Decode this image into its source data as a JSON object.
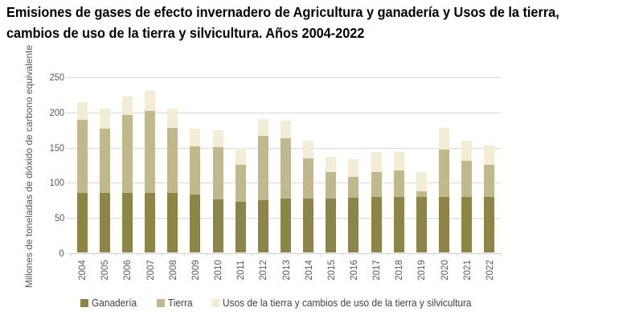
{
  "title": {
    "line1": "Emisiones de gases de efecto invernadero de Agricultura y ganadería y Usos de la tierra,",
    "line2": "cambios de uso de la tierra y silvicultura. Años 2004-2022"
  },
  "colors": {
    "ganaderia": "#8d8546",
    "tierra": "#c1b98b",
    "usos": "#f2edd5",
    "grid": "#d9d9d9",
    "axis_text": "#595959",
    "legend_text": "#3f3f3f",
    "title_text": "#000000"
  },
  "chart_data": {
    "type": "bar",
    "stacked": true,
    "title": "Emisiones de gases de efecto invernadero de Agricultura y ganadería y Usos de la tierra, cambios de uso de la tierra y silvicultura. Años 2004-2022",
    "xlabel": "",
    "ylabel": "Millones de toneladas de dióxido de carbono equivalente",
    "ylim": [
      0,
      250
    ],
    "yticks": [
      0,
      50,
      100,
      150,
      200,
      250
    ],
    "grid": true,
    "legend_position": "bottom",
    "categories": [
      "2004",
      "2005",
      "2006",
      "2007",
      "2008",
      "2009",
      "2010",
      "2011",
      "2012",
      "2013",
      "2014",
      "2015",
      "2016",
      "2017",
      "2018",
      "2019",
      "2020",
      "2021",
      "2022"
    ],
    "series": [
      {
        "name": "Ganadería",
        "color": "#8d8546",
        "values": [
          84,
          84,
          85,
          84,
          85,
          82,
          75,
          72,
          74,
          76,
          77,
          77,
          78,
          79,
          79,
          79,
          79,
          79,
          79
        ]
      },
      {
        "name": "Tierra",
        "color": "#c1b98b",
        "values": [
          104,
          92,
          110,
          117,
          92,
          69,
          75,
          53,
          91,
          86,
          57,
          37,
          29,
          35,
          37,
          8,
          67,
          51,
          45
        ]
      },
      {
        "name": "Usos de la tierra y cambios de uso de la tierra y silvicultura",
        "color": "#f2edd5",
        "values": [
          25,
          28,
          27,
          29,
          27,
          25,
          23,
          24,
          25,
          25,
          25,
          22,
          25,
          29,
          27,
          27,
          31,
          29,
          28
        ]
      }
    ],
    "totals": [
      213,
      204,
      222,
      230,
      204,
      176,
      173,
      149,
      190,
      187,
      159,
      136,
      132,
      143,
      143,
      114,
      177,
      159,
      152
    ]
  }
}
